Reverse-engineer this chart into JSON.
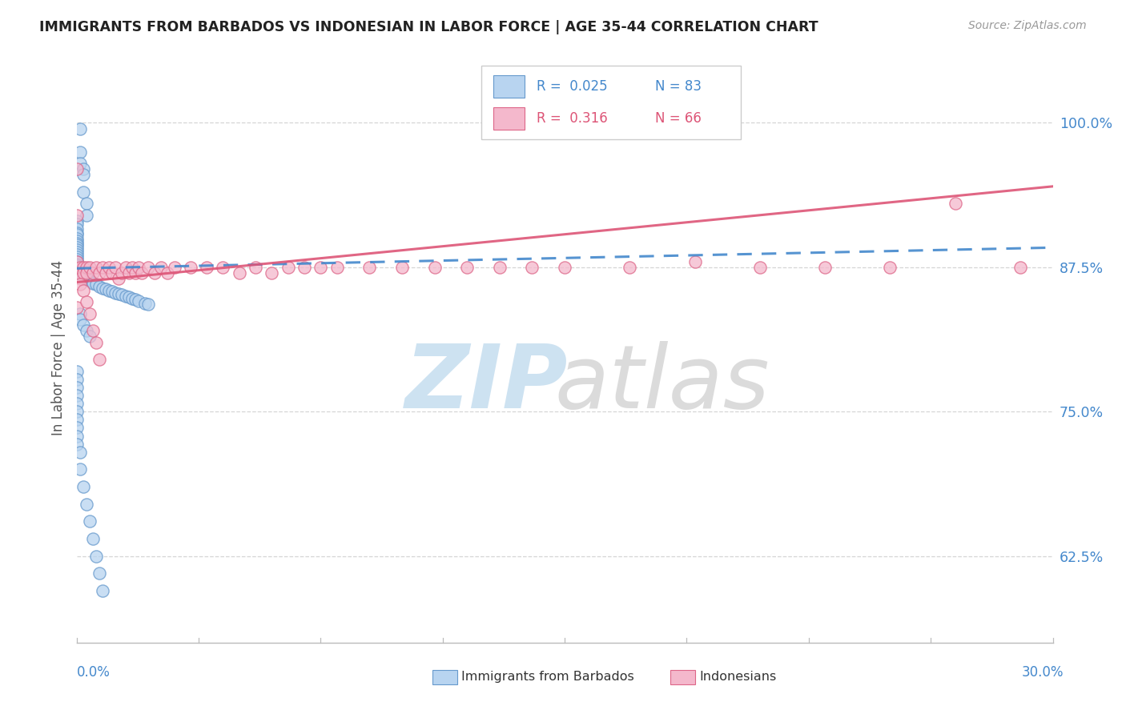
{
  "title": "IMMIGRANTS FROM BARBADOS VS INDONESIAN IN LABOR FORCE | AGE 35-44 CORRELATION CHART",
  "source": "Source: ZipAtlas.com",
  "ylabel": "In Labor Force | Age 35-44",
  "yticks": [
    0.625,
    0.75,
    0.875,
    1.0
  ],
  "ytick_labels": [
    "62.5%",
    "75.0%",
    "87.5%",
    "100.0%"
  ],
  "xlim": [
    0.0,
    0.3
  ],
  "ylim": [
    0.55,
    1.06
  ],
  "barbados_color": "#b8d4f0",
  "indonesian_color": "#f4b8cc",
  "barbados_edge_color": "#6699cc",
  "indonesian_edge_color": "#dd6688",
  "barbados_line_color": "#4488cc",
  "indonesian_line_color": "#dd5577",
  "title_color": "#222222",
  "axis_label_color": "#4488cc",
  "legend_r_color_blue": "#4488cc",
  "legend_r_color_pink": "#dd5577",
  "watermark_zip_color": "#c8dff0",
  "watermark_atlas_color": "#d8d8d8",
  "barbados_x": [
    0.001,
    0.001,
    0.001,
    0.002,
    0.002,
    0.002,
    0.003,
    0.003,
    0.0,
    0.0,
    0.0,
    0.0,
    0.0,
    0.0,
    0.0,
    0.0,
    0.0,
    0.0,
    0.0,
    0.0,
    0.0,
    0.0,
    0.0,
    0.0,
    0.0,
    0.0,
    0.0,
    0.0,
    0.001,
    0.001,
    0.001,
    0.001,
    0.001,
    0.002,
    0.002,
    0.002,
    0.003,
    0.003,
    0.004,
    0.004,
    0.005,
    0.005,
    0.006,
    0.007,
    0.008,
    0.009,
    0.01,
    0.011,
    0.012,
    0.013,
    0.014,
    0.015,
    0.016,
    0.017,
    0.018,
    0.019,
    0.021,
    0.022,
    0.001,
    0.001,
    0.002,
    0.003,
    0.004,
    0.0,
    0.0,
    0.0,
    0.0,
    0.0,
    0.0,
    0.0,
    0.0,
    0.0,
    0.0,
    0.001,
    0.001,
    0.002,
    0.003,
    0.004,
    0.005,
    0.006,
    0.007,
    0.008
  ],
  "barbados_y": [
    0.995,
    0.975,
    0.965,
    0.96,
    0.955,
    0.94,
    0.93,
    0.92,
    0.915,
    0.912,
    0.908,
    0.905,
    0.903,
    0.9,
    0.898,
    0.896,
    0.894,
    0.892,
    0.89,
    0.888,
    0.886,
    0.884,
    0.882,
    0.88,
    0.878,
    0.877,
    0.876,
    0.875,
    0.874,
    0.873,
    0.872,
    0.871,
    0.87,
    0.869,
    0.868,
    0.867,
    0.866,
    0.865,
    0.864,
    0.863,
    0.862,
    0.861,
    0.86,
    0.858,
    0.857,
    0.856,
    0.855,
    0.854,
    0.853,
    0.852,
    0.851,
    0.85,
    0.849,
    0.848,
    0.847,
    0.846,
    0.844,
    0.843,
    0.835,
    0.83,
    0.825,
    0.82,
    0.815,
    0.785,
    0.778,
    0.771,
    0.764,
    0.757,
    0.75,
    0.743,
    0.736,
    0.729,
    0.722,
    0.715,
    0.7,
    0.685,
    0.67,
    0.655,
    0.64,
    0.625,
    0.61,
    0.595
  ],
  "indonesian_x": [
    0.0,
    0.0,
    0.0,
    0.0,
    0.001,
    0.001,
    0.001,
    0.002,
    0.002,
    0.003,
    0.003,
    0.004,
    0.005,
    0.006,
    0.007,
    0.008,
    0.009,
    0.01,
    0.011,
    0.012,
    0.013,
    0.014,
    0.015,
    0.016,
    0.017,
    0.018,
    0.019,
    0.02,
    0.022,
    0.024,
    0.026,
    0.028,
    0.03,
    0.035,
    0.04,
    0.045,
    0.05,
    0.055,
    0.06,
    0.065,
    0.07,
    0.075,
    0.08,
    0.09,
    0.1,
    0.11,
    0.12,
    0.13,
    0.14,
    0.15,
    0.17,
    0.19,
    0.21,
    0.23,
    0.25,
    0.27,
    0.29,
    0.001,
    0.002,
    0.003,
    0.004,
    0.005,
    0.006,
    0.007
  ],
  "indonesian_y": [
    0.96,
    0.92,
    0.88,
    0.84,
    0.875,
    0.87,
    0.865,
    0.875,
    0.87,
    0.875,
    0.87,
    0.875,
    0.87,
    0.875,
    0.87,
    0.875,
    0.87,
    0.875,
    0.87,
    0.875,
    0.865,
    0.87,
    0.875,
    0.87,
    0.875,
    0.87,
    0.875,
    0.87,
    0.875,
    0.87,
    0.875,
    0.87,
    0.875,
    0.875,
    0.875,
    0.875,
    0.87,
    0.875,
    0.87,
    0.875,
    0.875,
    0.875,
    0.875,
    0.875,
    0.875,
    0.875,
    0.875,
    0.875,
    0.875,
    0.875,
    0.875,
    0.88,
    0.875,
    0.875,
    0.875,
    0.93,
    0.875,
    0.86,
    0.855,
    0.845,
    0.835,
    0.82,
    0.81,
    0.795
  ],
  "trend_blue_x0": 0.0,
  "trend_blue_y0": 0.874,
  "trend_blue_x1": 0.3,
  "trend_blue_y1": 0.892,
  "trend_pink_x0": 0.0,
  "trend_pink_y0": 0.862,
  "trend_pink_x1": 0.3,
  "trend_pink_y1": 0.945
}
